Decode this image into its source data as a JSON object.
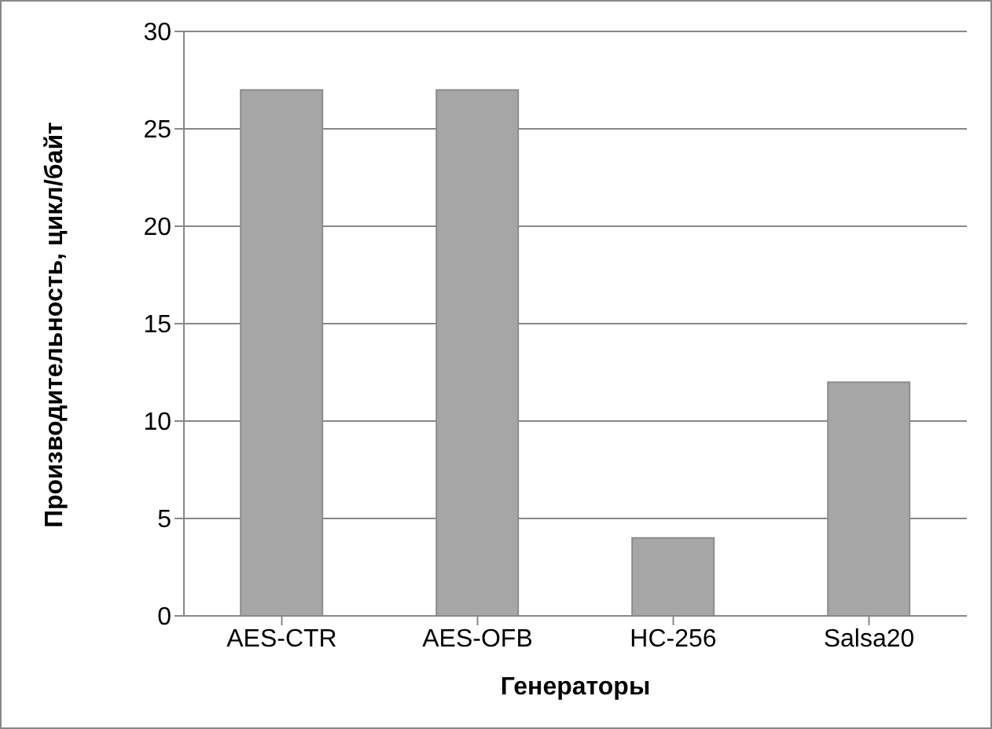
{
  "chart_data": {
    "type": "bar",
    "xlabel": "Генераторы",
    "ylabel": "Производительность, цикл/байт",
    "categories": [
      "AES-CTR",
      "AES-OFB",
      "HC-256",
      "Salsa20"
    ],
    "values": [
      27,
      27,
      4,
      12
    ],
    "color": "#a6a6a6",
    "ylim": [
      0,
      30
    ],
    "yticks": [
      0,
      5,
      10,
      15,
      20,
      25,
      30
    ],
    "grid": "y",
    "legend": false
  }
}
